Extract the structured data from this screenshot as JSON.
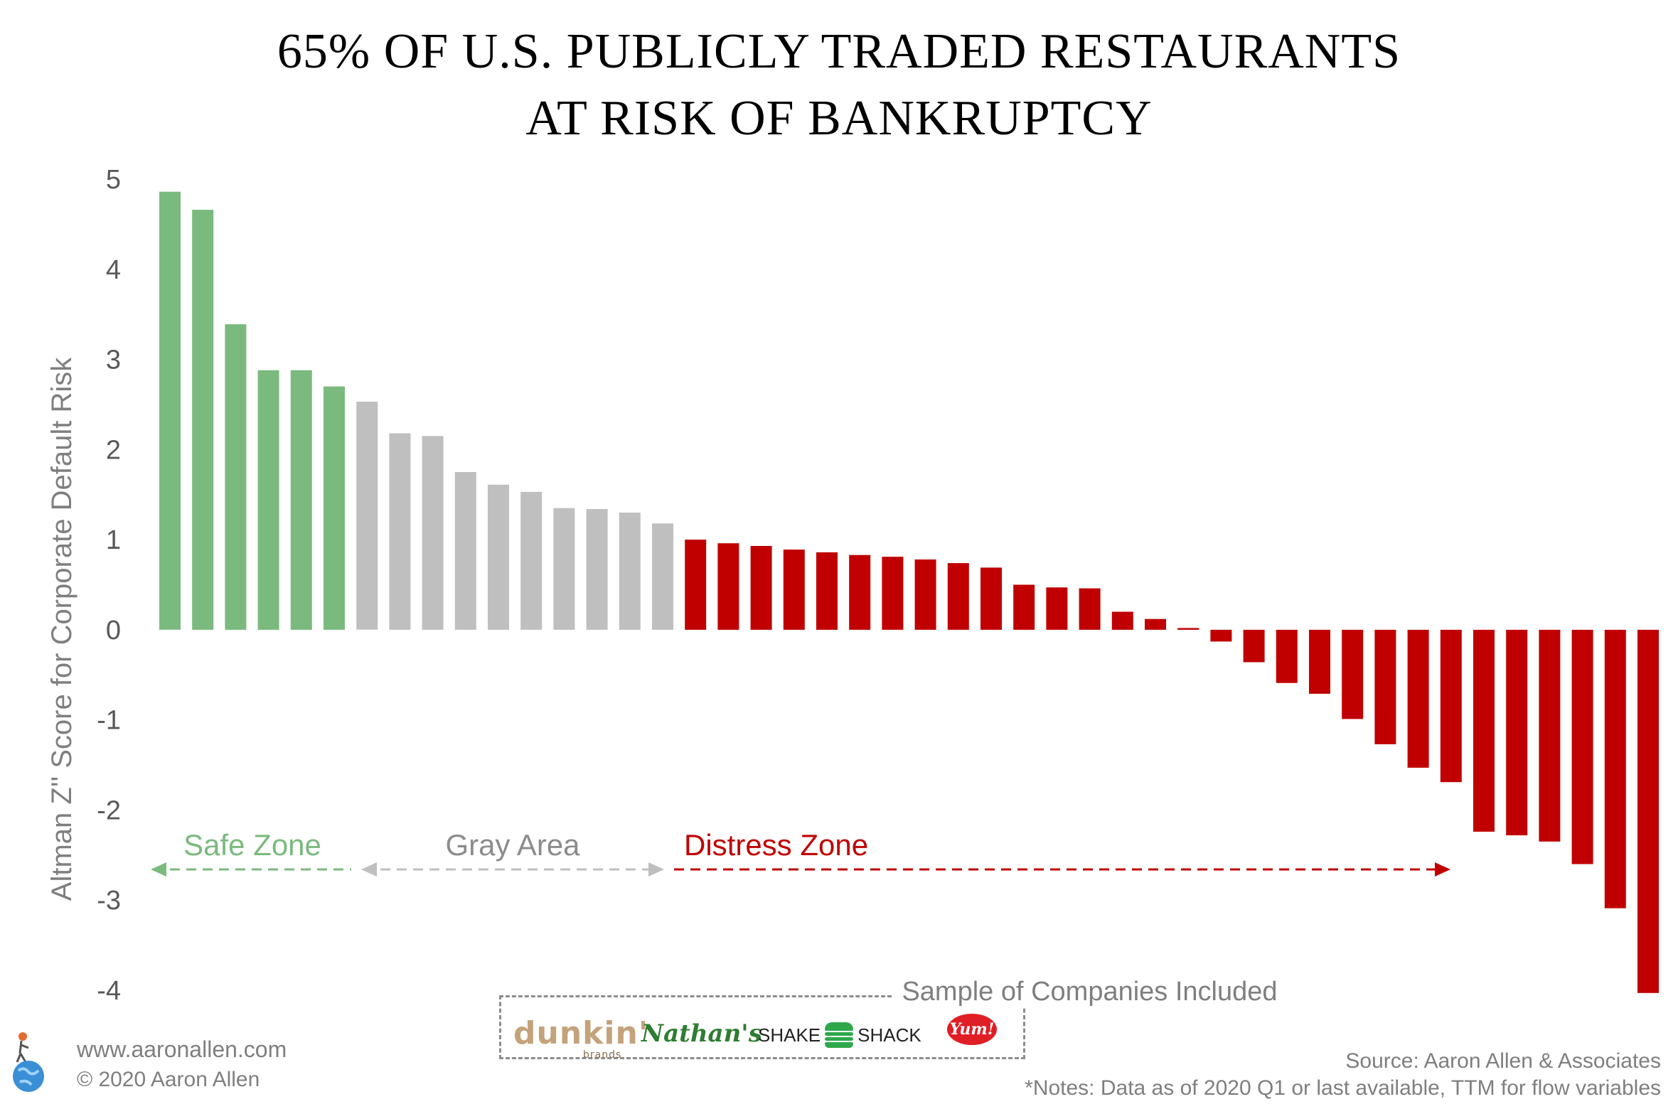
{
  "title_line1": "65% OF U.S. PUBLICLY TRADED RESTAURANTS",
  "title_line2": "AT RISK OF BANKRUPTCY",
  "chart_data": {
    "type": "bar",
    "ylabel": "Altman Z'' Score for Corporate Default Risk",
    "ylim": [
      -4,
      5
    ],
    "yticks": [
      5,
      4,
      3,
      2,
      1,
      0,
      -1,
      -2,
      -3,
      -4
    ],
    "grid": false,
    "values": [
      4.86,
      4.66,
      3.39,
      2.88,
      2.88,
      2.7,
      2.53,
      2.18,
      2.15,
      1.75,
      1.61,
      1.53,
      1.35,
      1.34,
      1.3,
      1.18,
      1.0,
      0.96,
      0.93,
      0.89,
      0.86,
      0.83,
      0.81,
      0.78,
      0.74,
      0.69,
      0.5,
      0.47,
      0.46,
      0.2,
      0.12,
      0.02,
      -0.13,
      -0.36,
      -0.59,
      -0.71,
      -0.99,
      -1.27,
      -1.53,
      -1.69,
      -2.24,
      -2.28,
      -2.35,
      -2.6,
      -3.09,
      -4.03
    ],
    "zones": [
      {
        "name": "Safe Zone",
        "count": 6,
        "color": "#7aba7e"
      },
      {
        "name": "Gray Area",
        "count": 10,
        "color": "#bfbfbf"
      },
      {
        "name": "Distress Zone",
        "count": 30,
        "color": "#c00000"
      }
    ]
  },
  "samples": {
    "title": "Sample of Companies Included",
    "logos": {
      "dunkin_main": "dunkin'",
      "dunkin_sub": "brands",
      "nathans": "Nathan's",
      "shake_left": "SHAKE",
      "shake_right": "SHACK",
      "yum": "Yum!"
    }
  },
  "footer": {
    "website": "www.aaronallen.com",
    "copyright": "© 2020 Aaron Allen",
    "source": "Source: Aaron Allen & Associates",
    "notes": "*Notes: Data as of 2020 Q1 or last available, TTM for flow variables"
  }
}
